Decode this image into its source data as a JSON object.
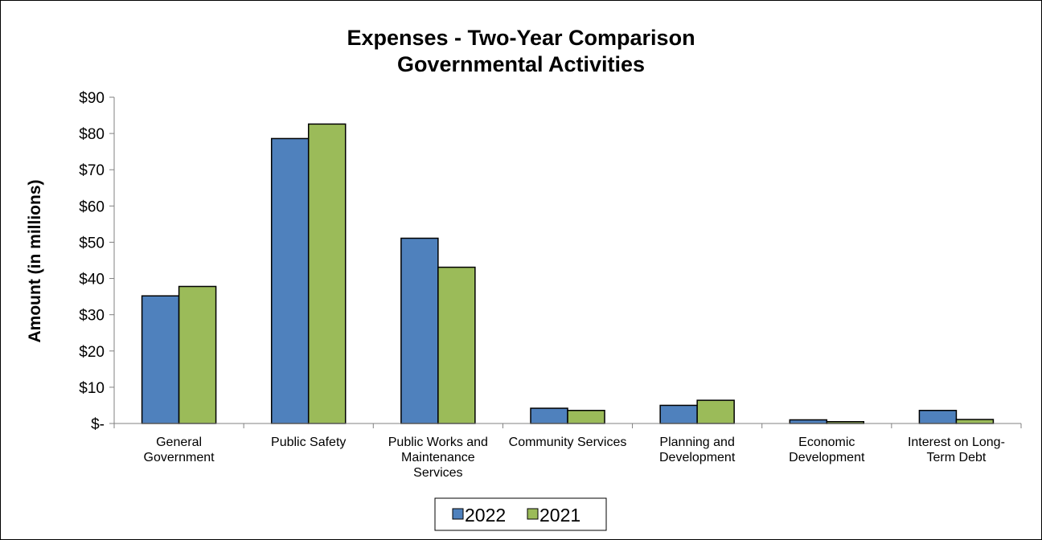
{
  "colors": {
    "series_2022": "#4f81bd",
    "series_2021": "#9bbb59",
    "axis": "#808080",
    "frame": "#000000"
  },
  "chart_data": {
    "type": "bar",
    "title": [
      "Expenses - Two-Year Comparison",
      "Governmental Activities"
    ],
    "xlabel": "",
    "ylabel": "Amount (in millions)",
    "ylim": [
      0,
      90
    ],
    "yticks": [
      0,
      10,
      20,
      30,
      40,
      50,
      60,
      70,
      80,
      90
    ],
    "ytick_labels": [
      "$-",
      "$10",
      "$20",
      "$30",
      "$40",
      "$50",
      "$60",
      "$70",
      "$80",
      "$90"
    ],
    "grid": false,
    "legend_position": "bottom",
    "categories": [
      [
        "General",
        "Government"
      ],
      [
        "Public Safety"
      ],
      [
        "Public Works and",
        "Maintenance",
        "Services"
      ],
      [
        "Community Services"
      ],
      [
        "Planning and",
        "Development"
      ],
      [
        "Economic",
        "Development"
      ],
      [
        "Interest on Long-",
        "Term Debt"
      ]
    ],
    "series": [
      {
        "name": "2022",
        "values": [
          35.2,
          78.6,
          51.1,
          4.2,
          5.0,
          1.0,
          3.6
        ]
      },
      {
        "name": "2021",
        "values": [
          37.8,
          82.6,
          43.1,
          3.6,
          6.4,
          0.5,
          1.1
        ]
      }
    ]
  }
}
